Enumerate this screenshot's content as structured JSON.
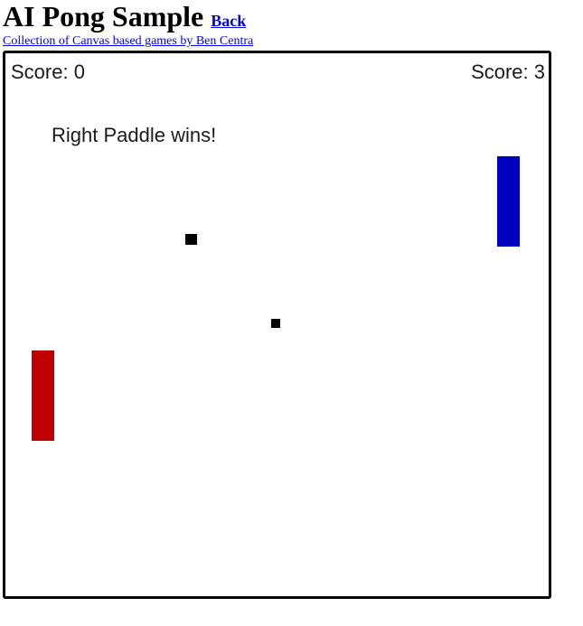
{
  "header": {
    "title": "AI Pong Sample",
    "back_label": "Back"
  },
  "collection_link": "Collection of Canvas based games by Ben Centra",
  "game": {
    "left_score_text": "Score: 0",
    "right_score_text": "Score: 3",
    "win_message": "Right Paddle wins!",
    "left_paddle_color": "#c00000",
    "right_paddle_color": "#0000bf",
    "ball_color": "#000000"
  }
}
